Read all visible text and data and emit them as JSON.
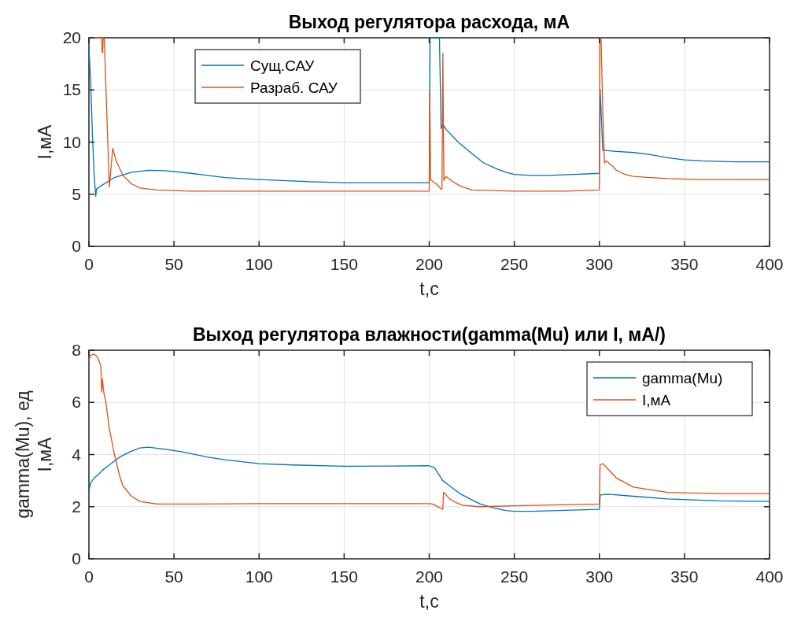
{
  "chart_data": [
    {
      "type": "line",
      "title": "Выход регулятора расхода, мА",
      "xlabel": "t,c",
      "ylabel": "I,мА",
      "xlim": [
        0,
        400
      ],
      "ylim": [
        0,
        20
      ],
      "xticks": [
        0,
        50,
        100,
        150,
        200,
        250,
        300,
        350,
        400
      ],
      "yticks": [
        0,
        5,
        10,
        15,
        20
      ],
      "grid": true,
      "legend": "top left",
      "series": [
        {
          "name": "Сущ.САУ",
          "color": "#0072bd",
          "x": [
            0,
            1,
            2,
            3,
            4,
            4.5,
            8,
            15,
            25,
            35,
            45,
            60,
            80,
            100,
            130,
            150,
            180,
            200,
            200.5,
            206,
            207,
            208,
            210,
            217,
            225,
            232,
            240,
            245,
            250,
            260,
            270,
            285,
            300,
            300.5,
            302,
            303,
            310,
            320,
            330,
            340,
            350,
            360,
            380,
            400
          ],
          "values": [
            19,
            16,
            11,
            7,
            4.8,
            5.5,
            5.9,
            6.6,
            7.1,
            7.3,
            7.25,
            7.0,
            6.6,
            6.4,
            6.2,
            6.1,
            6.1,
            6.1,
            20,
            20,
            11.3,
            11.7,
            11.2,
            10,
            8.9,
            8,
            7.4,
            7.1,
            6.9,
            6.8,
            6.8,
            6.9,
            7.0,
            15,
            9.2,
            9.2,
            9.1,
            9.0,
            8.8,
            8.5,
            8.3,
            8.2,
            8.1,
            8.1
          ]
        },
        {
          "name": "Разраб. САУ",
          "color": "#d95319",
          "x": [
            0,
            7.5,
            7.8,
            8.1,
            8.4,
            9,
            12,
            14,
            16,
            20,
            25,
            30,
            40,
            60,
            100,
            150,
            200,
            200.3,
            200.8,
            204,
            207,
            207.5,
            208,
            208.6,
            209,
            210,
            213,
            218,
            225,
            250,
            280,
            300,
            300.3,
            301,
            302,
            303,
            304,
            307,
            310,
            315,
            320,
            330,
            340,
            360,
            400
          ],
          "values": [
            20,
            20,
            18.6,
            18.6,
            20,
            20,
            5.7,
            9.4,
            8.2,
            6.8,
            6,
            5.6,
            5.4,
            5.3,
            5.3,
            5.3,
            5.3,
            14.8,
            6.4,
            6,
            5.5,
            5.5,
            18.5,
            6.3,
            6.5,
            6.7,
            6.3,
            5.8,
            5.4,
            5.3,
            5.3,
            5.4,
            20,
            20,
            13,
            8,
            8.2,
            7.8,
            7.3,
            6.9,
            6.7,
            6.6,
            6.5,
            6.4,
            6.4
          ]
        }
      ]
    },
    {
      "type": "line",
      "title": "Выход регулятора влажности(gamma(Mu) или I, мА/)",
      "xlabel": "t,c",
      "ylabel": "gamma(Mu), ед\nI,мА",
      "xlim": [
        0,
        400
      ],
      "ylim": [
        0,
        8
      ],
      "xticks": [
        0,
        50,
        100,
        150,
        200,
        250,
        300,
        350,
        400
      ],
      "yticks": [
        0,
        2,
        4,
        6,
        8
      ],
      "grid": true,
      "legend": "top right",
      "series": [
        {
          "name": "gamma(Mu)",
          "color": "#0072bd",
          "x": [
            0,
            1,
            3,
            5,
            8,
            12,
            18,
            24,
            30,
            35,
            45,
            55,
            70,
            80,
            100,
            120,
            150,
            180,
            200,
            203,
            205,
            208,
            212,
            218,
            224,
            230,
            238,
            245,
            250,
            260,
            280,
            300,
            300.5,
            305,
            320,
            340,
            370,
            400
          ],
          "values": [
            2.6,
            2.9,
            3.1,
            3.2,
            3.4,
            3.6,
            3.9,
            4.1,
            4.25,
            4.28,
            4.2,
            4.1,
            3.9,
            3.8,
            3.65,
            3.6,
            3.55,
            3.56,
            3.57,
            3.5,
            3.3,
            3.0,
            2.8,
            2.5,
            2.3,
            2.1,
            1.95,
            1.85,
            1.82,
            1.82,
            1.86,
            1.9,
            2.45,
            2.48,
            2.4,
            2.3,
            2.22,
            2.2
          ]
        },
        {
          "name": "I,мА",
          "color": "#d95319",
          "x": [
            0,
            1,
            3,
            5,
            7,
            7.5,
            8,
            8.5,
            9,
            10,
            12,
            15,
            18,
            20,
            25,
            30,
            40,
            60,
            100,
            150,
            200,
            202,
            208,
            208.4,
            210,
            212,
            216,
            220,
            230,
            260,
            300,
            300.4,
            302,
            305,
            310,
            320,
            340,
            370,
            400
          ],
          "values": [
            7.6,
            7.8,
            7.85,
            7.75,
            7.4,
            6.4,
            6.9,
            6.5,
            6.3,
            6.0,
            5.0,
            4.0,
            3.2,
            2.8,
            2.4,
            2.2,
            2.1,
            2.1,
            2.12,
            2.12,
            2.12,
            2.1,
            1.9,
            2.55,
            2.45,
            2.3,
            2.15,
            2.05,
            2.0,
            2.05,
            2.1,
            3.6,
            3.65,
            3.45,
            3.1,
            2.75,
            2.55,
            2.5,
            2.5
          ]
        }
      ]
    }
  ]
}
